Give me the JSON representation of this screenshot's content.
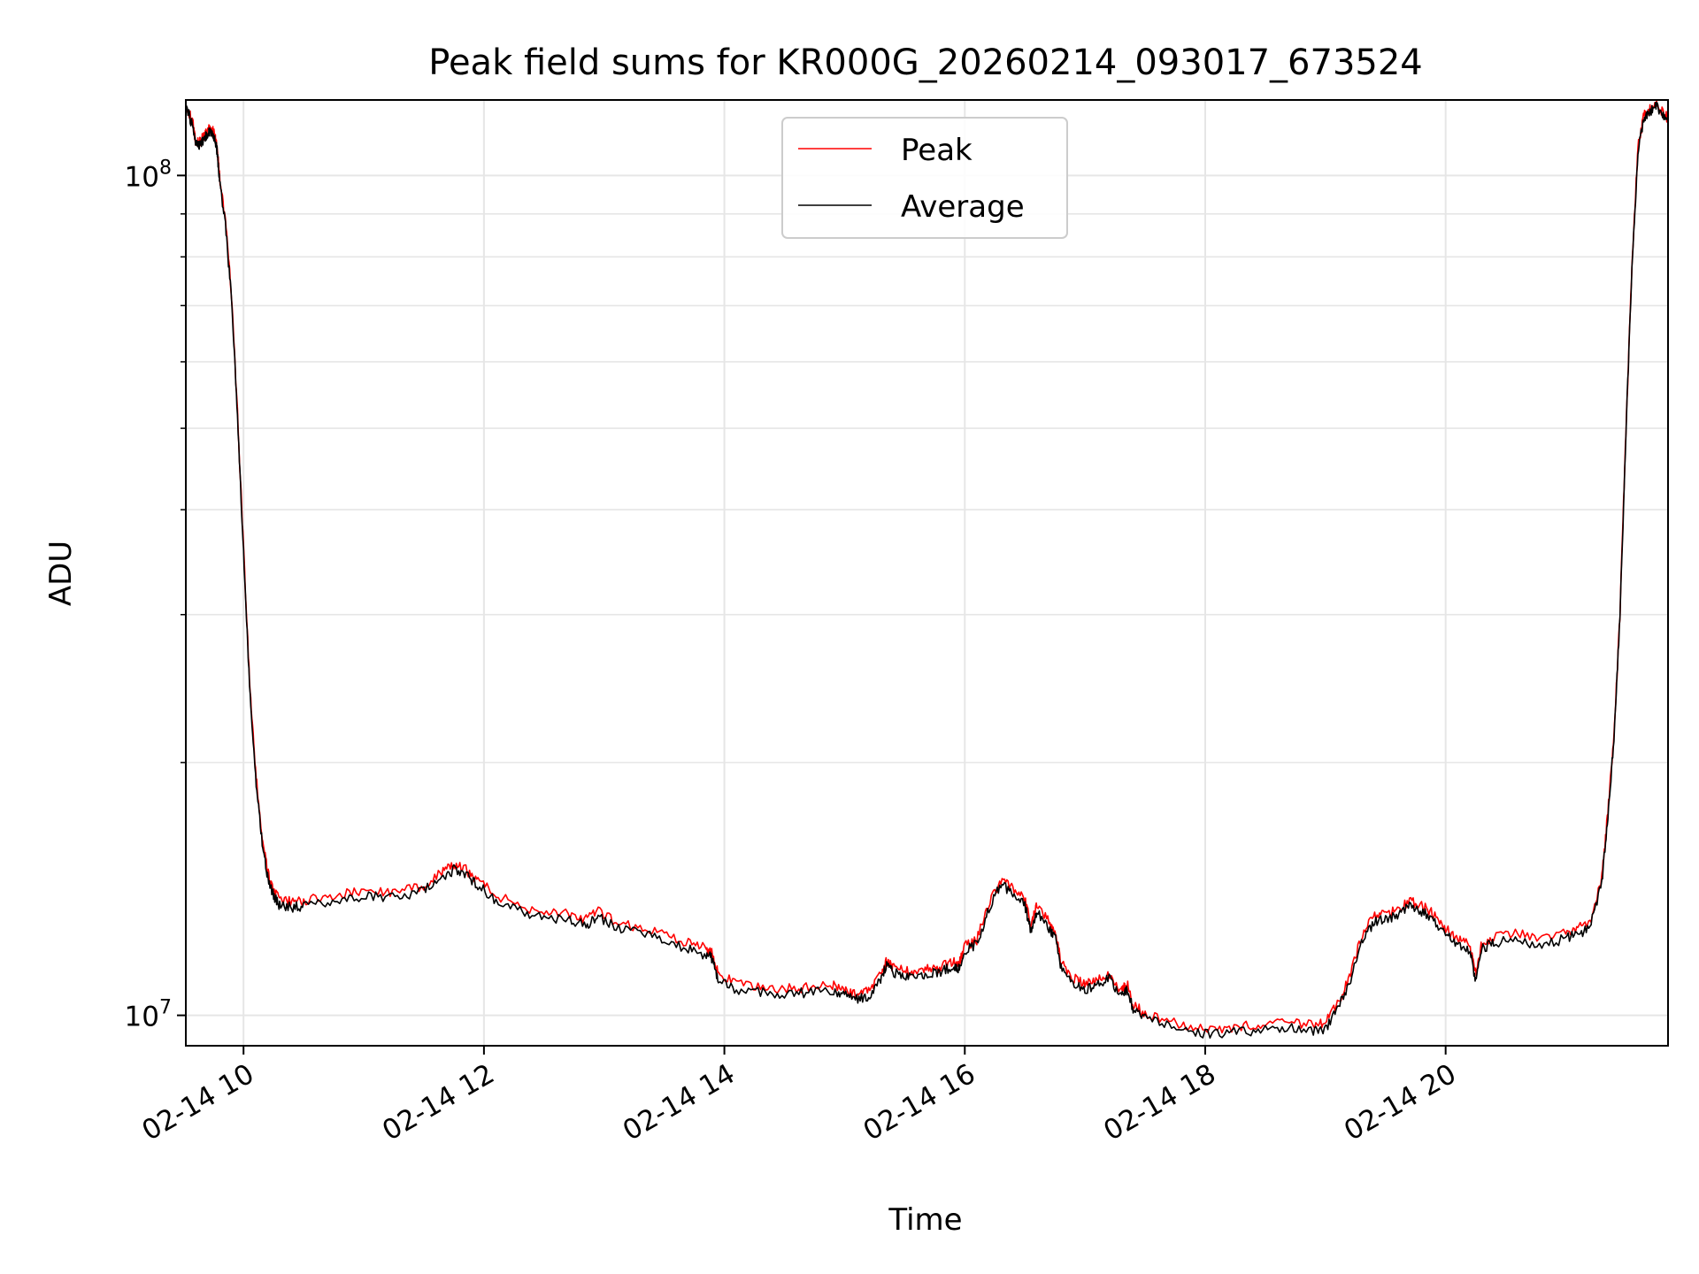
{
  "chart_data": {
    "type": "line",
    "title": "Peak field sums for KR000G_20260214_093017_673524",
    "xlabel": "Time",
    "ylabel": "ADU",
    "yscale": "log",
    "ylim": [
      9200000,
      123000000
    ],
    "xlim_hours": [
      9.52,
      21.85
    ],
    "grid": true,
    "legend_position": "upper-center",
    "x_ticks": [
      {
        "hour": 10,
        "label": "02-14 10"
      },
      {
        "hour": 12,
        "label": "02-14 12"
      },
      {
        "hour": 14,
        "label": "02-14 14"
      },
      {
        "hour": 16,
        "label": "02-14 16"
      },
      {
        "hour": 18,
        "label": "02-14 18"
      },
      {
        "hour": 20,
        "label": "02-14 20"
      }
    ],
    "y_ticks": [
      {
        "value": 10000000,
        "base": "10",
        "exp": "7"
      },
      {
        "value": 100000000,
        "base": "10",
        "exp": "8"
      }
    ],
    "series": [
      {
        "name": "Peak",
        "color": "#ff0000",
        "x": [
          9.52,
          9.58,
          9.6,
          9.63,
          9.65,
          9.68,
          9.7,
          9.73,
          9.76,
          9.78,
          9.8,
          9.85,
          9.9,
          9.95,
          10.0,
          10.05,
          10.1,
          10.15,
          10.2,
          10.25,
          10.3,
          10.4,
          10.5,
          10.7,
          10.9,
          11.1,
          11.3,
          11.5,
          11.65,
          11.75,
          11.85,
          11.95,
          12.1,
          12.3,
          12.5,
          12.7,
          12.85,
          12.95,
          13.1,
          13.3,
          13.5,
          13.7,
          13.85,
          13.9,
          13.95,
          14.1,
          14.3,
          14.5,
          14.7,
          14.9,
          15.0,
          15.1,
          15.2,
          15.3,
          15.35,
          15.4,
          15.5,
          15.6,
          15.7,
          15.8,
          15.9,
          15.95,
          16.0,
          16.1,
          16.2,
          16.3,
          16.4,
          16.5,
          16.55,
          16.6,
          16.7,
          16.75,
          16.8,
          16.9,
          17.0,
          17.1,
          17.2,
          17.3,
          17.35,
          17.4,
          17.5,
          17.7,
          17.9,
          18.1,
          18.3,
          18.5,
          18.7,
          18.9,
          19.0,
          19.1,
          19.2,
          19.3,
          19.4,
          19.5,
          19.6,
          19.7,
          19.8,
          19.9,
          20.0,
          20.1,
          20.2,
          20.25,
          20.3,
          20.4,
          20.6,
          20.8,
          21.0,
          21.1,
          21.2,
          21.3,
          21.35,
          21.4,
          21.45,
          21.5,
          21.55,
          21.6,
          21.65,
          21.7,
          21.75,
          21.8,
          21.85
        ],
        "values": [
          122000000,
          115000000,
          110000000,
          109500000,
          110500000,
          112000000,
          113000000,
          114000000,
          112000000,
          108000000,
          100000000,
          88000000,
          72000000,
          52000000,
          36000000,
          25000000,
          19500000,
          16500000,
          14800000,
          14100000,
          13700000,
          13650000,
          13700000,
          13850000,
          14000000,
          14050000,
          14000000,
          14300000,
          14800000,
          15100000,
          14900000,
          14500000,
          13900000,
          13500000,
          13300000,
          13200000,
          13000000,
          13300000,
          12900000,
          12700000,
          12500000,
          12200000,
          12000000,
          11900000,
          11200000,
          10900000,
          10800000,
          10750000,
          10800000,
          10850000,
          10700000,
          10600000,
          10700000,
          11200000,
          11600000,
          11400000,
          11300000,
          11300000,
          11350000,
          11400000,
          11600000,
          11500000,
          12100000,
          12300000,
          13600000,
          14500000,
          14200000,
          13700000,
          12800000,
          13500000,
          12900000,
          12600000,
          11600000,
          11100000,
          10900000,
          11000000,
          11200000,
          10700000,
          10900000,
          10300000,
          10050000,
          9850000,
          9700000,
          9650000,
          9700000,
          9750000,
          9800000,
          9750000,
          9800000,
          10300000,
          11100000,
          12400000,
          13100000,
          13200000,
          13350000,
          13700000,
          13500000,
          13200000,
          12700000,
          12300000,
          12150000,
          11200000,
          12200000,
          12400000,
          12500000,
          12300000,
          12550000,
          12700000,
          12900000,
          14600000,
          17500000,
          21500000,
          30000000,
          50000000,
          78000000,
          108000000,
          118000000,
          120000000,
          122000000,
          119000000,
          117000000
        ]
      },
      {
        "name": "Average",
        "color": "#000000",
        "x": [
          9.52,
          9.58,
          9.6,
          9.63,
          9.65,
          9.68,
          9.7,
          9.73,
          9.76,
          9.78,
          9.8,
          9.85,
          9.9,
          9.95,
          10.0,
          10.05,
          10.1,
          10.15,
          10.2,
          10.25,
          10.3,
          10.4,
          10.5,
          10.7,
          10.9,
          11.1,
          11.3,
          11.5,
          11.65,
          11.75,
          11.85,
          11.95,
          12.1,
          12.3,
          12.5,
          12.7,
          12.85,
          12.95,
          13.1,
          13.3,
          13.5,
          13.7,
          13.85,
          13.9,
          13.95,
          14.1,
          14.3,
          14.5,
          14.7,
          14.9,
          15.0,
          15.1,
          15.2,
          15.3,
          15.35,
          15.4,
          15.5,
          15.6,
          15.7,
          15.8,
          15.9,
          15.95,
          16.0,
          16.1,
          16.2,
          16.3,
          16.4,
          16.5,
          16.55,
          16.6,
          16.7,
          16.75,
          16.8,
          16.9,
          17.0,
          17.1,
          17.2,
          17.3,
          17.35,
          17.4,
          17.5,
          17.7,
          17.9,
          18.1,
          18.3,
          18.5,
          18.7,
          18.9,
          19.0,
          19.1,
          19.2,
          19.3,
          19.4,
          19.5,
          19.6,
          19.7,
          19.8,
          19.9,
          20.0,
          20.1,
          20.2,
          20.25,
          20.3,
          20.4,
          20.6,
          20.8,
          21.0,
          21.1,
          21.2,
          21.3,
          21.35,
          21.4,
          21.45,
          21.5,
          21.55,
          21.6,
          21.65,
          21.7,
          21.75,
          21.8,
          21.85
        ],
        "values": [
          121000000,
          114000000,
          109000000,
          108500000,
          109500000,
          111000000,
          112000000,
          113000000,
          111000000,
          107000000,
          99000000,
          87000000,
          71500000,
          51500000,
          35500000,
          24700000,
          19200000,
          16300000,
          14600000,
          13900000,
          13500000,
          13450000,
          13500000,
          13650000,
          13800000,
          13850000,
          13800000,
          14100000,
          14600000,
          14900000,
          14700000,
          14300000,
          13700000,
          13300000,
          13100000,
          13000000,
          12800000,
          13100000,
          12700000,
          12500000,
          12300000,
          12000000,
          11800000,
          11700000,
          11000000,
          10750000,
          10650000,
          10600000,
          10650000,
          10700000,
          10550000,
          10450000,
          10550000,
          11050000,
          11450000,
          11250000,
          11150000,
          11150000,
          11200000,
          11250000,
          11450000,
          11350000,
          11950000,
          12150000,
          13400000,
          14300000,
          14000000,
          13500000,
          12600000,
          13300000,
          12700000,
          12400000,
          11450000,
          10950000,
          10750000,
          10850000,
          11050000,
          10550000,
          10750000,
          10150000,
          9900000,
          9700000,
          9550000,
          9500000,
          9550000,
          9600000,
          9650000,
          9600000,
          9650000,
          10150000,
          10950000,
          12200000,
          12900000,
          13000000,
          13150000,
          13500000,
          13300000,
          13000000,
          12500000,
          12100000,
          11950000,
          11000000,
          12000000,
          12200000,
          12300000,
          12100000,
          12350000,
          12500000,
          12700000,
          14400000,
          17300000,
          21300000,
          29700000,
          49500000,
          77000000,
          107000000,
          117000000,
          119000000,
          121000000,
          118000000,
          116000000
        ]
      }
    ]
  }
}
